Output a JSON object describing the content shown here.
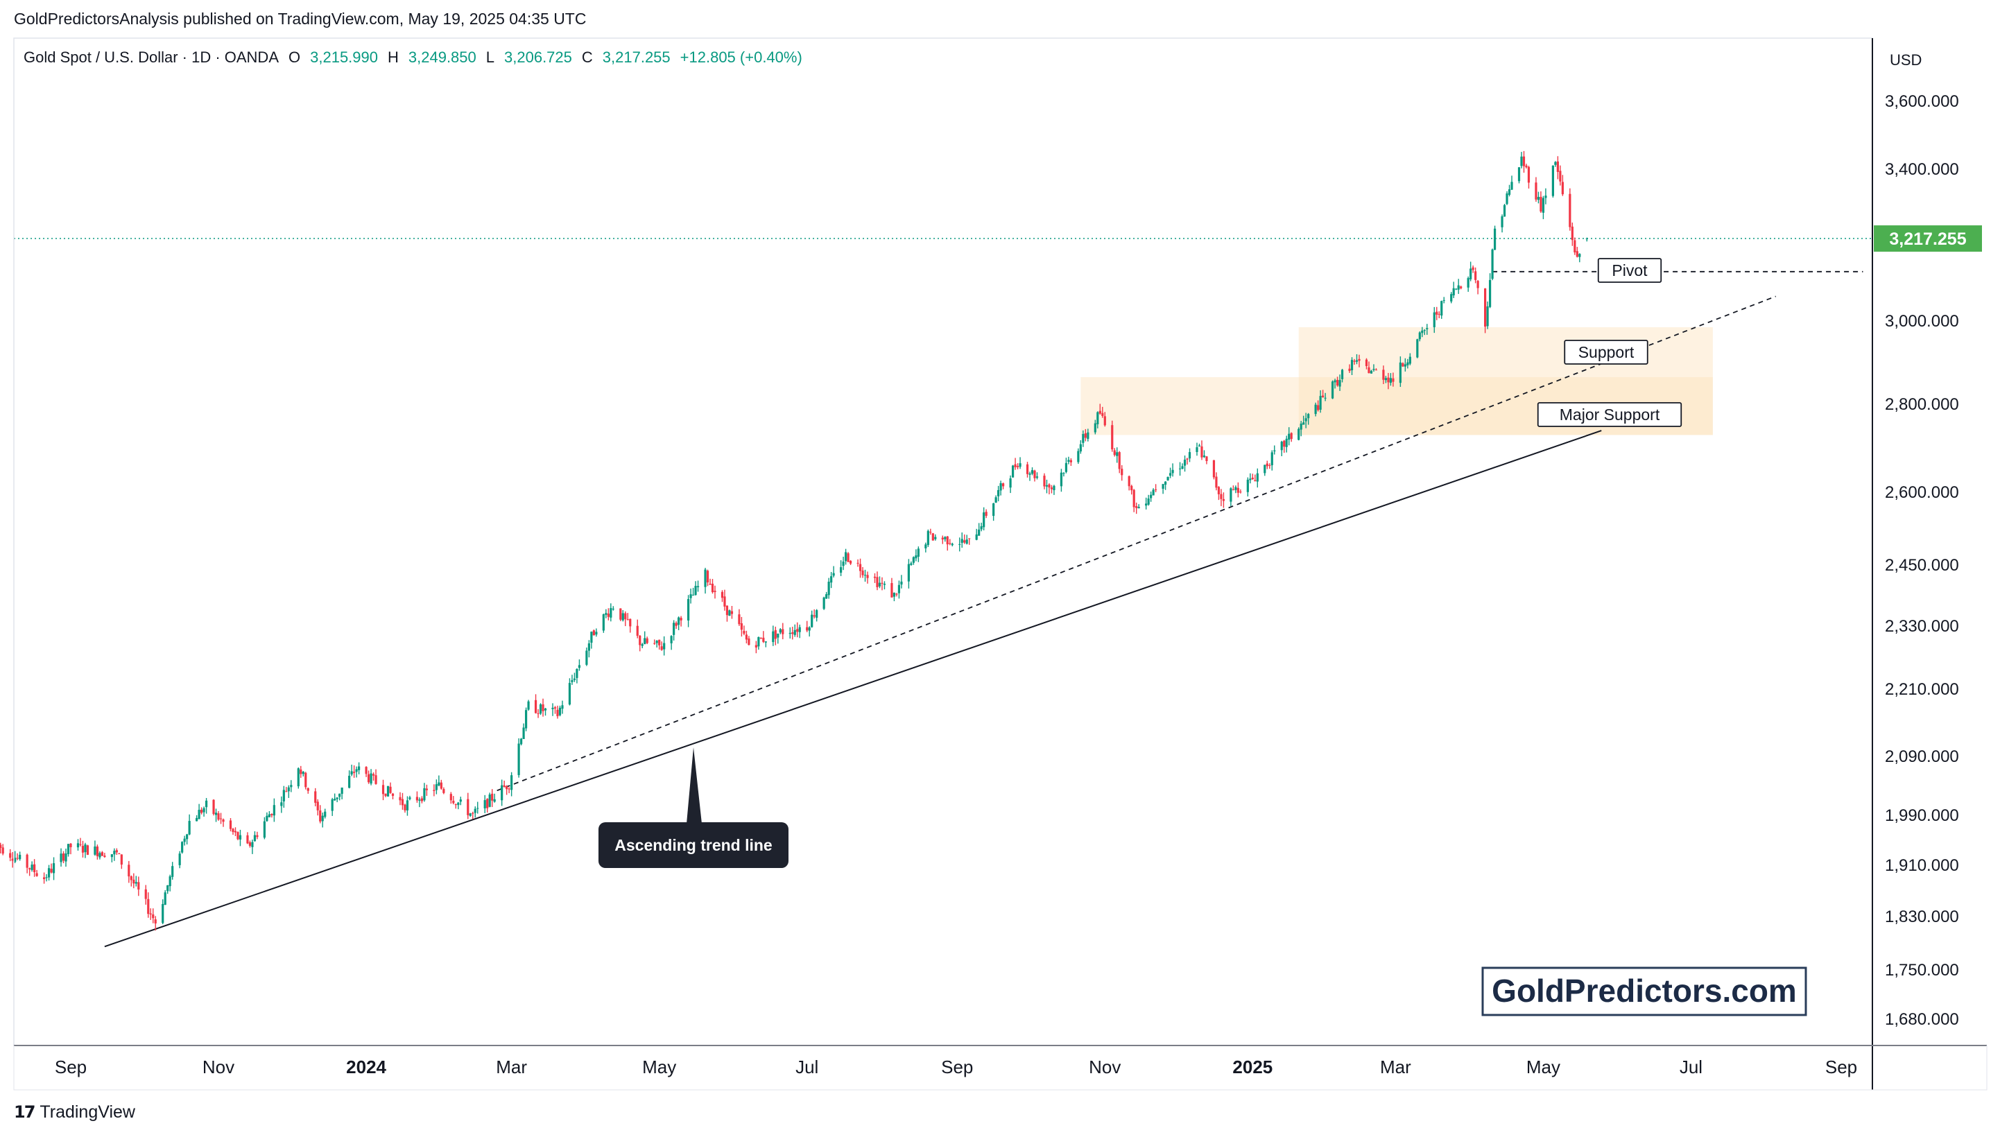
{
  "header": {
    "publisher_line": "GoldPredictorsAnalysis published on TradingView.com, May 19, 2025 04:35 UTC",
    "symbol": "Gold Spot / U.S. Dollar · 1D · OANDA",
    "open_label": "O",
    "open_value": "3,215.990",
    "high_label": "H",
    "high_value": "3,249.850",
    "low_label": "L",
    "low_value": "3,206.725",
    "close_label": "C",
    "close_value": "3,217.255",
    "change_value": "+12.805 (+0.40%)"
  },
  "chart_data": {
    "type": "candlestick",
    "currency": "USD",
    "last_price_label": "3,217.255",
    "last_price": 3217.255,
    "y_ticks": [
      {
        "label": "3,600.000",
        "value": 3600
      },
      {
        "label": "3,400.000",
        "value": 3400
      },
      {
        "label": "3,000.000",
        "value": 3000
      },
      {
        "label": "2,800.000",
        "value": 2800
      },
      {
        "label": "2,600.000",
        "value": 2600
      },
      {
        "label": "2,450.000",
        "value": 2450
      },
      {
        "label": "2,330.000",
        "value": 2330
      },
      {
        "label": "2,210.000",
        "value": 2210
      },
      {
        "label": "2,090.000",
        "value": 2090
      },
      {
        "label": "1,990.000",
        "value": 1990
      },
      {
        "label": "1,910.000",
        "value": 1910
      },
      {
        "label": "1,830.000",
        "value": 1830
      },
      {
        "label": "1,750.000",
        "value": 1750
      },
      {
        "label": "1,680.000",
        "value": 1680
      }
    ],
    "x_ticks": [
      {
        "label": "Sep",
        "date": "2023-09-01",
        "bold": false
      },
      {
        "label": "Nov",
        "date": "2023-11-01",
        "bold": false
      },
      {
        "label": "2024",
        "date": "2024-01-01",
        "bold": true
      },
      {
        "label": "Mar",
        "date": "2024-03-01",
        "bold": false
      },
      {
        "label": "May",
        "date": "2024-05-01",
        "bold": false
      },
      {
        "label": "Jul",
        "date": "2024-07-01",
        "bold": false
      },
      {
        "label": "Sep",
        "date": "2024-09-01",
        "bold": false
      },
      {
        "label": "Nov",
        "date": "2024-11-01",
        "bold": false
      },
      {
        "label": "2025",
        "date": "2025-01-01",
        "bold": true
      },
      {
        "label": "Mar",
        "date": "2025-03-01",
        "bold": false
      },
      {
        "label": "May",
        "date": "2025-05-01",
        "bold": false
      },
      {
        "label": "Jul",
        "date": "2025-07-01",
        "bold": false
      },
      {
        "label": "Sep",
        "date": "2025-09-01",
        "bold": false
      }
    ],
    "price_path": [
      [
        "2023-08-01",
        1945
      ],
      [
        "2023-08-21",
        1890
      ],
      [
        "2023-09-01",
        1940
      ],
      [
        "2023-09-20",
        1928
      ],
      [
        "2023-10-06",
        1822
      ],
      [
        "2023-10-20",
        1980
      ],
      [
        "2023-10-27",
        2006
      ],
      [
        "2023-11-13",
        1938
      ],
      [
        "2023-11-30",
        2040
      ],
      [
        "2023-12-04",
        2075
      ],
      [
        "2023-12-13",
        1985
      ],
      [
        "2023-12-28",
        2070
      ],
      [
        "2024-01-17",
        2008
      ],
      [
        "2024-01-31",
        2040
      ],
      [
        "2024-02-14",
        1990
      ],
      [
        "2024-02-29",
        2045
      ],
      [
        "2024-03-08",
        2180
      ],
      [
        "2024-03-20",
        2165
      ],
      [
        "2024-04-05",
        2330
      ],
      [
        "2024-04-12",
        2370
      ],
      [
        "2024-04-23",
        2300
      ],
      [
        "2024-05-02",
        2290
      ],
      [
        "2024-05-20",
        2430
      ],
      [
        "2024-06-07",
        2295
      ],
      [
        "2024-06-21",
        2320
      ],
      [
        "2024-07-01",
        2330
      ],
      [
        "2024-07-17",
        2470
      ],
      [
        "2024-08-06",
        2390
      ],
      [
        "2024-08-20",
        2510
      ],
      [
        "2024-09-06",
        2495
      ],
      [
        "2024-09-26",
        2670
      ],
      [
        "2024-10-10",
        2610
      ],
      [
        "2024-10-30",
        2780
      ],
      [
        "2024-11-14",
        2565
      ],
      [
        "2024-11-25",
        2630
      ],
      [
        "2024-12-10",
        2700
      ],
      [
        "2024-12-19",
        2590
      ],
      [
        "2024-12-31",
        2624
      ],
      [
        "2025-01-24",
        2770
      ],
      [
        "2025-02-11",
        2900
      ],
      [
        "2025-02-28",
        2860
      ],
      [
        "2025-03-20",
        3040
      ],
      [
        "2025-04-02",
        3140
      ],
      [
        "2025-04-07",
        2990
      ],
      [
        "2025-04-11",
        3240
      ],
      [
        "2025-04-22",
        3430
      ],
      [
        "2025-04-30",
        3300
      ],
      [
        "2025-05-06",
        3420
      ],
      [
        "2025-05-15",
        3160
      ],
      [
        "2025-05-19",
        3217
      ]
    ],
    "annotations": {
      "pivot": {
        "label": "Pivot",
        "price": 3130,
        "from": "2025-04-10",
        "to": "2025-09-10"
      },
      "support_zone": {
        "label": "Support",
        "low": 2730,
        "high": 2985,
        "from": "2025-01-20",
        "to": "2025-07-10"
      },
      "major_support_zone": {
        "label": "Major Support",
        "low": 2730,
        "high": 2865,
        "from": "2024-10-22",
        "to": "2025-07-10"
      },
      "trend_line": {
        "label": "Ascending trend line",
        "from_date": "2023-09-15",
        "from_price": 1785,
        "to_date": "2025-05-25",
        "to_price": 2740
      },
      "dashed_trend": {
        "from_date": "2024-02-24",
        "from_price": 2032,
        "to_date": "2025-08-05",
        "to_price": 3065
      }
    }
  },
  "watermark": {
    "text": "GoldPredictors.com"
  },
  "footer": {
    "brand": "TradingView"
  },
  "colors": {
    "up": "#089981",
    "down": "#f23645",
    "price_tag": "#4caf50",
    "zone": "#fde3bd",
    "grid": "#e0e3eb"
  }
}
